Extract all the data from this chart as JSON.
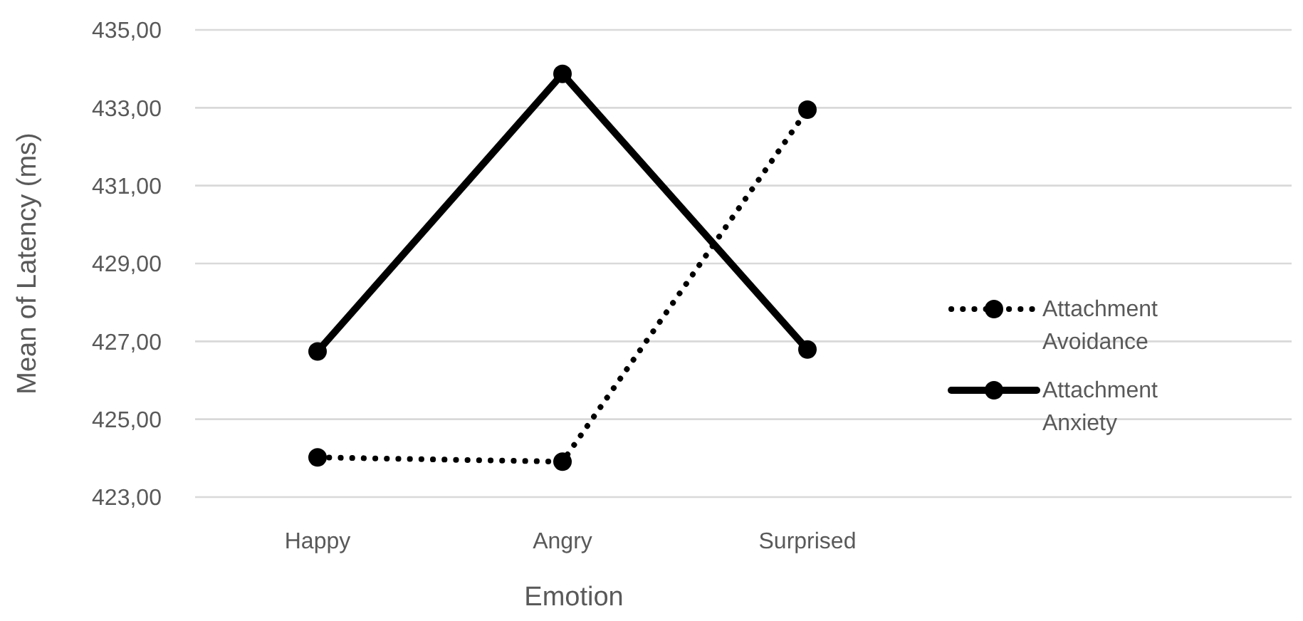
{
  "chart_data": {
    "type": "line",
    "xlabel": "Emotion",
    "ylabel": "Mean of Latency (ms)",
    "categories": [
      "Happy",
      "Angry",
      "Surprised"
    ],
    "series": [
      {
        "name": "Attachment Avoidance",
        "color": "#000000",
        "line_style": "dotted",
        "values": [
          424.02,
          423.91,
          432.95
        ]
      },
      {
        "name": "Attachment Anxiety",
        "color": "#000000",
        "line_style": "solid",
        "values": [
          426.74,
          433.87,
          426.79
        ]
      }
    ],
    "ylim": [
      423,
      435
    ],
    "yticks": [
      {
        "value": 423,
        "label": "423,00"
      },
      {
        "value": 425,
        "label": "425,00"
      },
      {
        "value": 427,
        "label": "427,00"
      },
      {
        "value": 429,
        "label": "429,00"
      },
      {
        "value": 431,
        "label": "431,00"
      },
      {
        "value": 433,
        "label": "433,00"
      },
      {
        "value": 435,
        "label": "435,00"
      }
    ],
    "grid": "y",
    "legend": "right",
    "marker": "circle"
  }
}
